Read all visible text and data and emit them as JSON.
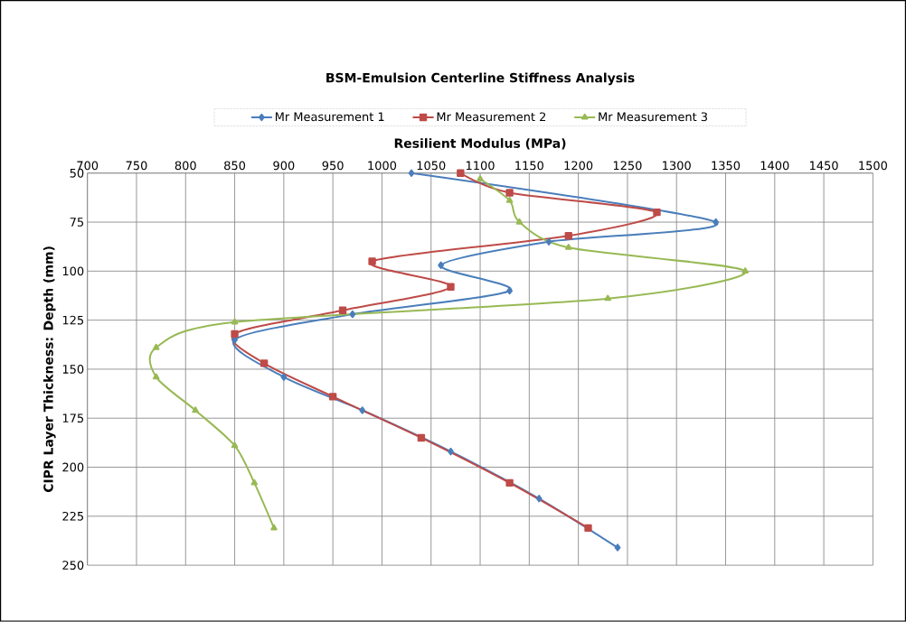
{
  "chart_data": {
    "type": "line",
    "title": "BSM-Emulsion Centerline Stiffness Analysis",
    "xlabel": "Resilient Modulus (MPa)",
    "ylabel": "CIPR Layer Thickness: Depth (mm)",
    "xlim": [
      700,
      1500
    ],
    "xticks": [
      700,
      750,
      800,
      850,
      900,
      950,
      1000,
      1050,
      1100,
      1150,
      1200,
      1250,
      1300,
      1350,
      1400,
      1450,
      1500
    ],
    "ylim": [
      250,
      50
    ],
    "yticks": [
      50,
      75,
      100,
      125,
      150,
      175,
      200,
      225,
      250
    ],
    "grid": true,
    "legend": "top",
    "line_style": "solid",
    "series": [
      {
        "name": "Mr Measurement 1",
        "color": "#4a7ebb",
        "marker": "diamond",
        "x": [
          1030,
          1340,
          1170,
          1060,
          1130,
          970,
          850,
          900,
          980,
          1070,
          1160,
          1240
        ],
        "values": [
          50,
          75,
          85,
          97,
          110,
          122,
          135,
          154,
          171,
          192,
          216,
          241
        ]
      },
      {
        "name": "Mr Measurement 2",
        "color": "#be4b48",
        "marker": "square",
        "x": [
          1080,
          1130,
          1280,
          1190,
          990,
          1070,
          960,
          850,
          880,
          950,
          1040,
          1130,
          1210
        ],
        "values": [
          50,
          60,
          70,
          82,
          95,
          108,
          120,
          132,
          147,
          164,
          185,
          208,
          231
        ]
      },
      {
        "name": "Mr Measurement 3",
        "color": "#98b954",
        "marker": "triangle",
        "x": [
          1100,
          1130,
          1140,
          1190,
          1370,
          1230,
          850,
          770,
          770,
          810,
          850,
          870,
          890
        ],
        "values": [
          53,
          64,
          75,
          88,
          100,
          114,
          126,
          139,
          154,
          171,
          189,
          208,
          231
        ]
      }
    ]
  }
}
